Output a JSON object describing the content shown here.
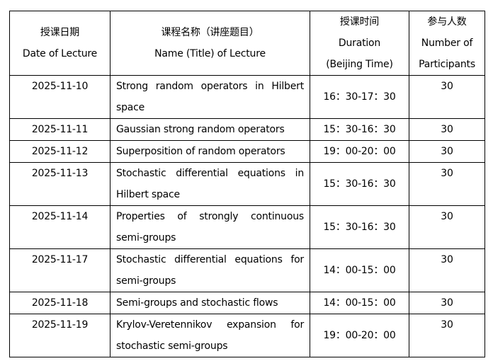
{
  "headers": {
    "date": {
      "zh": "授课日期",
      "en": "Date of Lecture"
    },
    "name": {
      "zh": "课程名称（讲座题目）",
      "en": "Name (Title) of Lecture"
    },
    "duration": {
      "zh": "授课时间",
      "en1": "Duration",
      "en2": "(Beijing Time)"
    },
    "participants": {
      "zh": "参与人数",
      "en1": "Number of",
      "en2": "Participants"
    }
  },
  "rows": [
    {
      "date": "2025-11-10",
      "name": "Strong random operators in Hilbert space",
      "duration": "16：30-17：30",
      "participants": "30"
    },
    {
      "date": "2025-11-11",
      "name": "Gaussian strong random operators",
      "duration": "15：30-16：30",
      "participants": "30"
    },
    {
      "date": "2025-11-12",
      "name": "Superposition of random operators",
      "duration": "19：00-20：00",
      "participants": "30"
    },
    {
      "date": "2025-11-13",
      "name": "Stochastic differential equations in Hilbert space",
      "duration": "15：30-16：30",
      "participants": "30"
    },
    {
      "date": "2025-11-14",
      "name": "Properties of strongly continuous semi-groups",
      "duration": "15：30-16：30",
      "participants": "30"
    },
    {
      "date": "2025-11-17",
      "name": "Stochastic differential equations for semi-groups",
      "duration": "14：00-15：00",
      "participants": "30"
    },
    {
      "date": "2025-11-18",
      "name": "Semi-groups and stochastic flows",
      "duration": "14：00-15：00",
      "participants": "30"
    },
    {
      "date": "2025-11-19",
      "name": "Krylov-Veretennikov expansion for stochastic semi-groups",
      "duration": "19：00-20：00",
      "participants": "30"
    }
  ]
}
